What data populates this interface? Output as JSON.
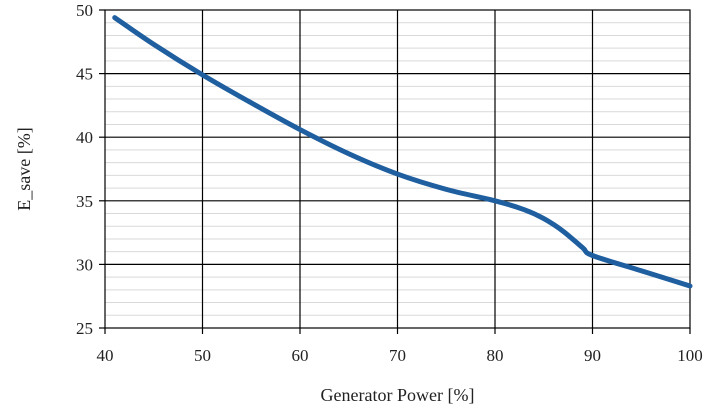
{
  "chart_data": {
    "type": "line",
    "xlabel": "Generator Power [%]",
    "ylabel": "E_save [%]",
    "xlim": [
      40,
      100
    ],
    "ylim": [
      25,
      50
    ],
    "x_ticks": [
      40,
      50,
      60,
      70,
      80,
      90,
      100
    ],
    "y_ticks": [
      25,
      30,
      35,
      40,
      45,
      50
    ],
    "y_minor_step": 1,
    "grid": true,
    "colors": {
      "line": "#1f5fa0",
      "minor_grid": "#d9d9d9",
      "major_grid": "#000000"
    },
    "series": [
      {
        "x": [
          41,
          45,
          50,
          55,
          60,
          65,
          70,
          75,
          80,
          83,
          85,
          87,
          89,
          90,
          95,
          100
        ],
        "y": [
          49.4,
          47.3,
          44.9,
          42.7,
          40.6,
          38.7,
          37.1,
          35.9,
          35.0,
          34.3,
          33.6,
          32.6,
          31.3,
          30.7,
          29.5,
          28.3
        ]
      }
    ]
  }
}
